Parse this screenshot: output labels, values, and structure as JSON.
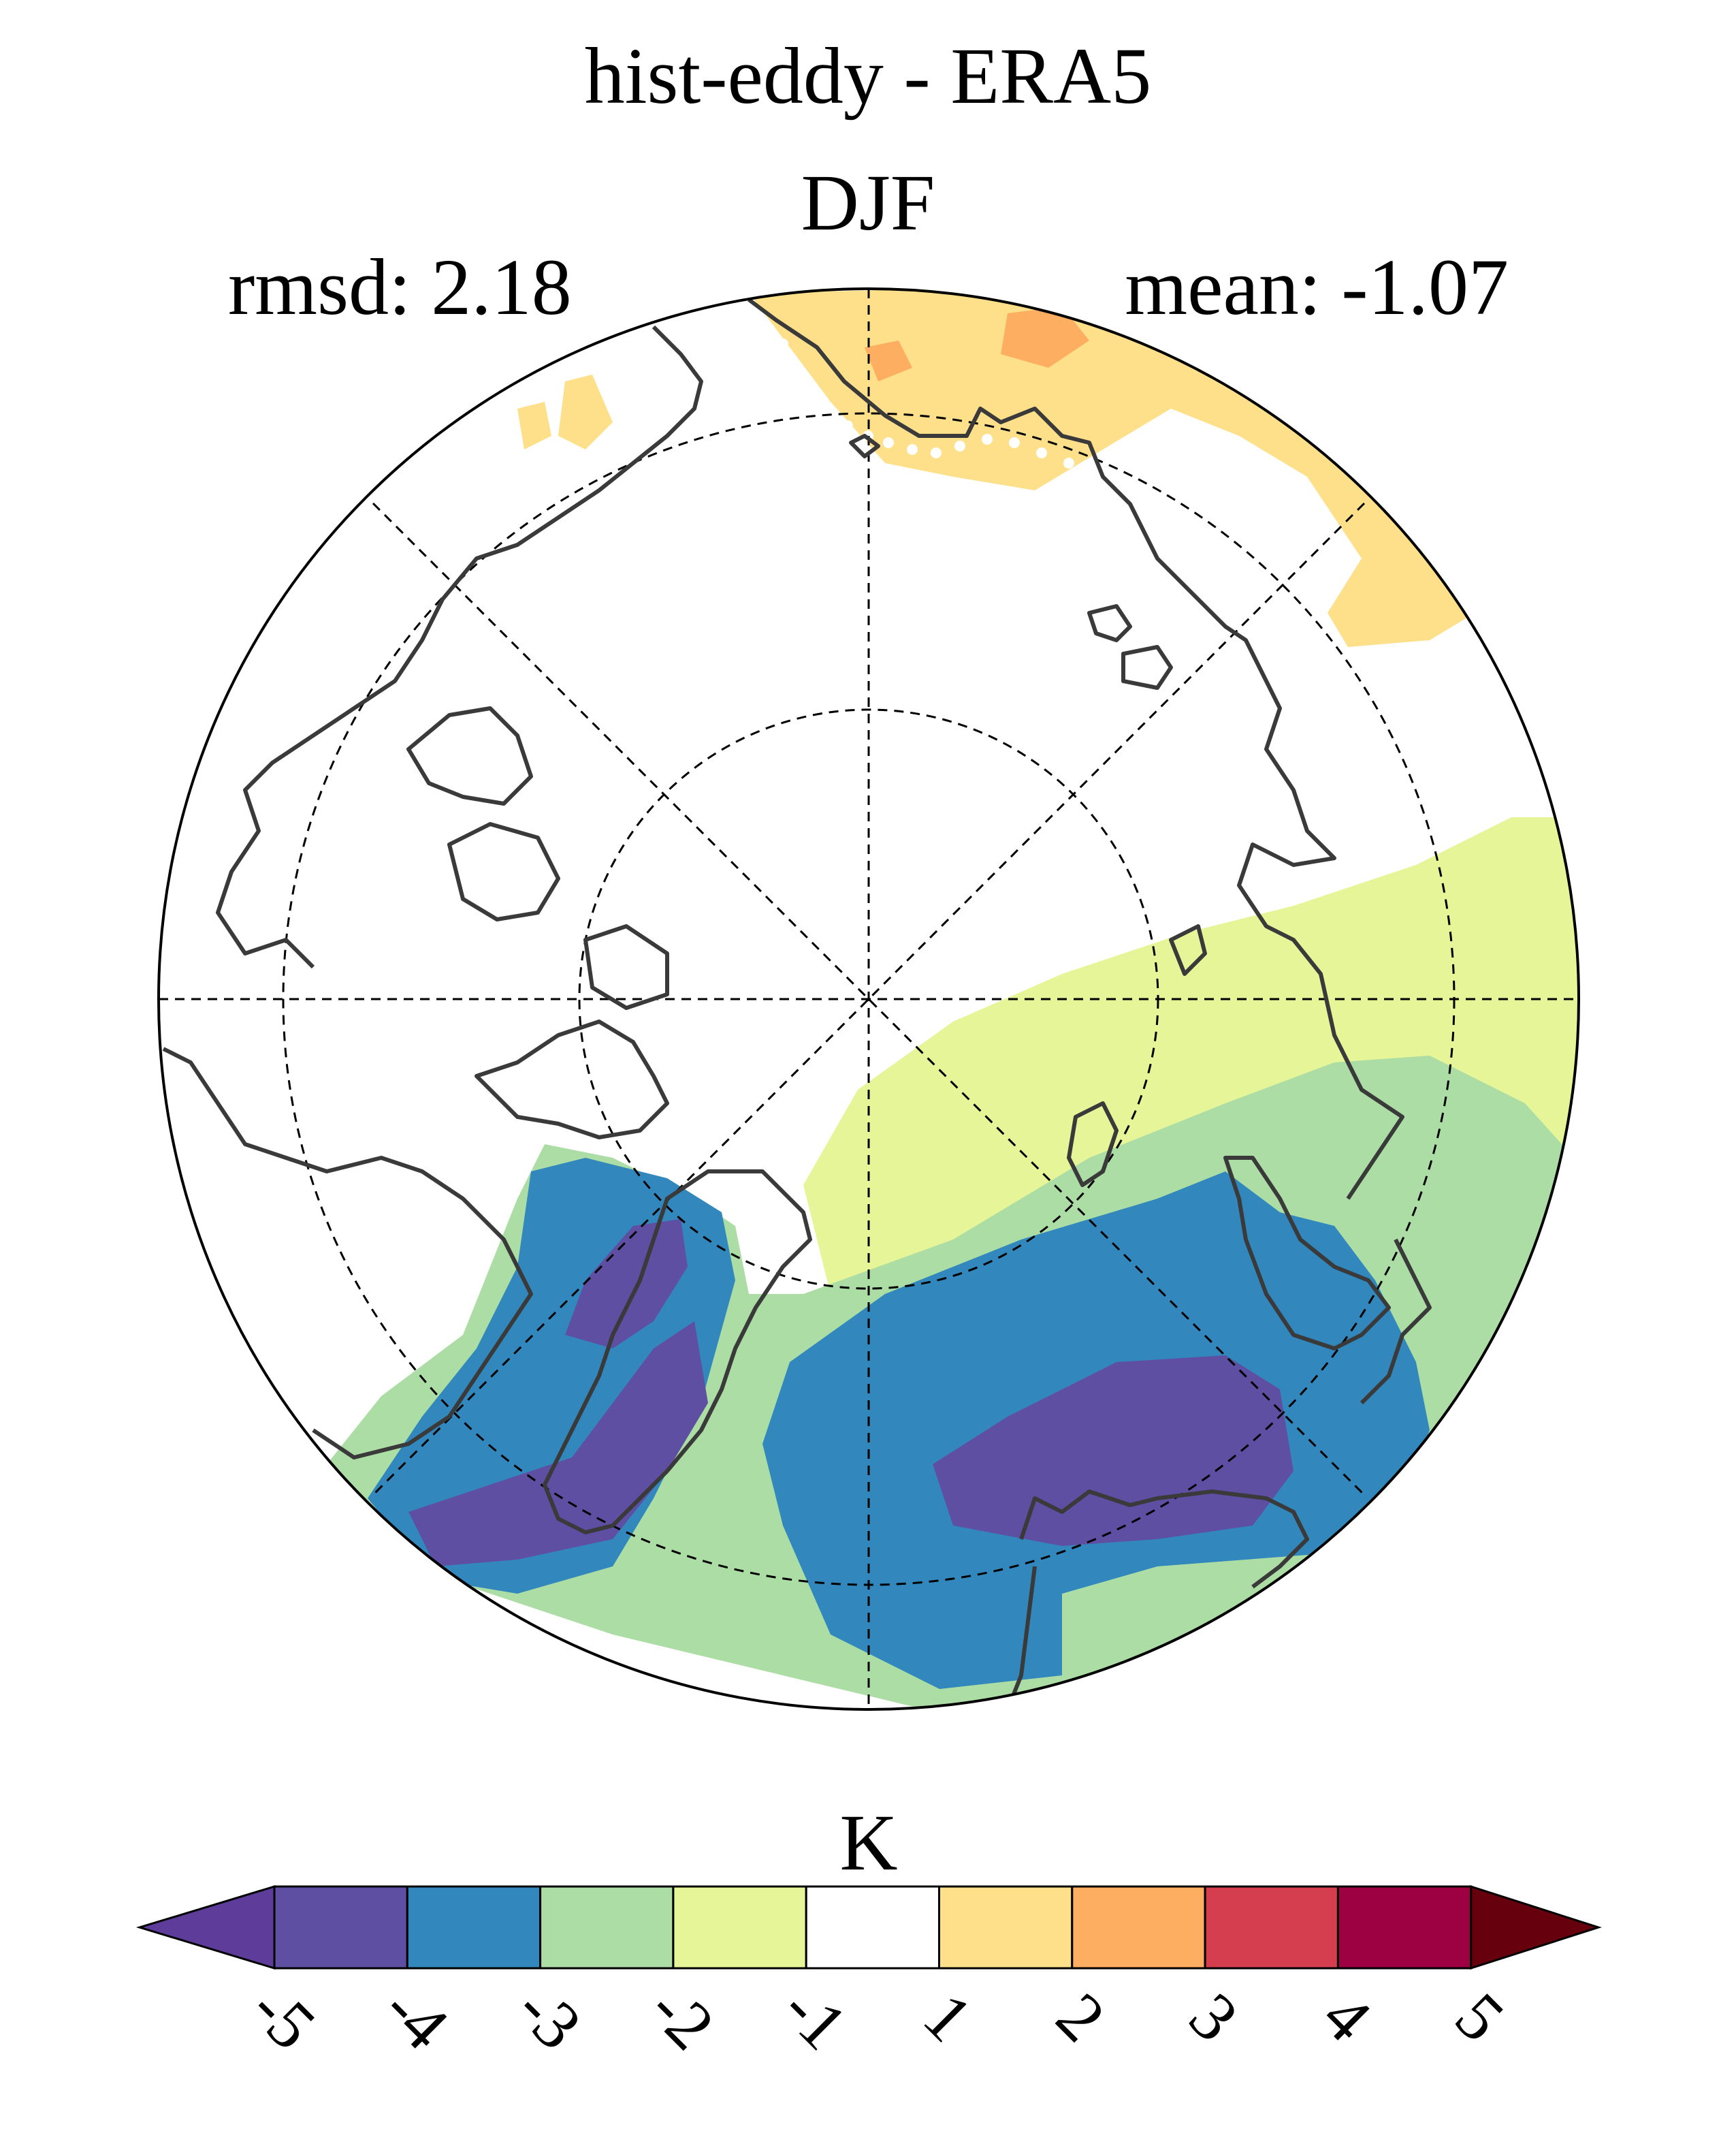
{
  "header": {
    "title": "hist-eddy - ERA5",
    "season": "DJF",
    "rmsd_text": "rmsd: 2.18",
    "mean_text": "mean: -1.07"
  },
  "map": {
    "projection": "north-polar-stereographic",
    "graticule": "dashed",
    "stippling": "white-dots",
    "coastline_color": "#3a3a3a"
  },
  "colorbar": {
    "unit_label": "K",
    "tick_labels": [
      "-5",
      "-4",
      "-3",
      "-2",
      "-1",
      "1",
      "2",
      "3",
      "4",
      "5"
    ],
    "bins": [
      {
        "range": "<-5",
        "color": "#5e3c99"
      },
      {
        "range": "-5 to -4",
        "color": "#5e4fa2"
      },
      {
        "range": "-4 to -3",
        "color": "#3288bd"
      },
      {
        "range": "-3 to -2",
        "color": "#abdda4"
      },
      {
        "range": "-2 to -1",
        "color": "#e6f598"
      },
      {
        "range": "-1 to 1",
        "color": "#ffffff"
      },
      {
        "range": "1 to 2",
        "color": "#fee08b"
      },
      {
        "range": "2 to 3",
        "color": "#fdae61"
      },
      {
        "range": "3 to 4",
        "color": "#d53e4f"
      },
      {
        "range": "4 to 5",
        "color": "#9e0142"
      },
      {
        "range": ">5",
        "color": "#67000d"
      }
    ],
    "extend": "both"
  }
}
